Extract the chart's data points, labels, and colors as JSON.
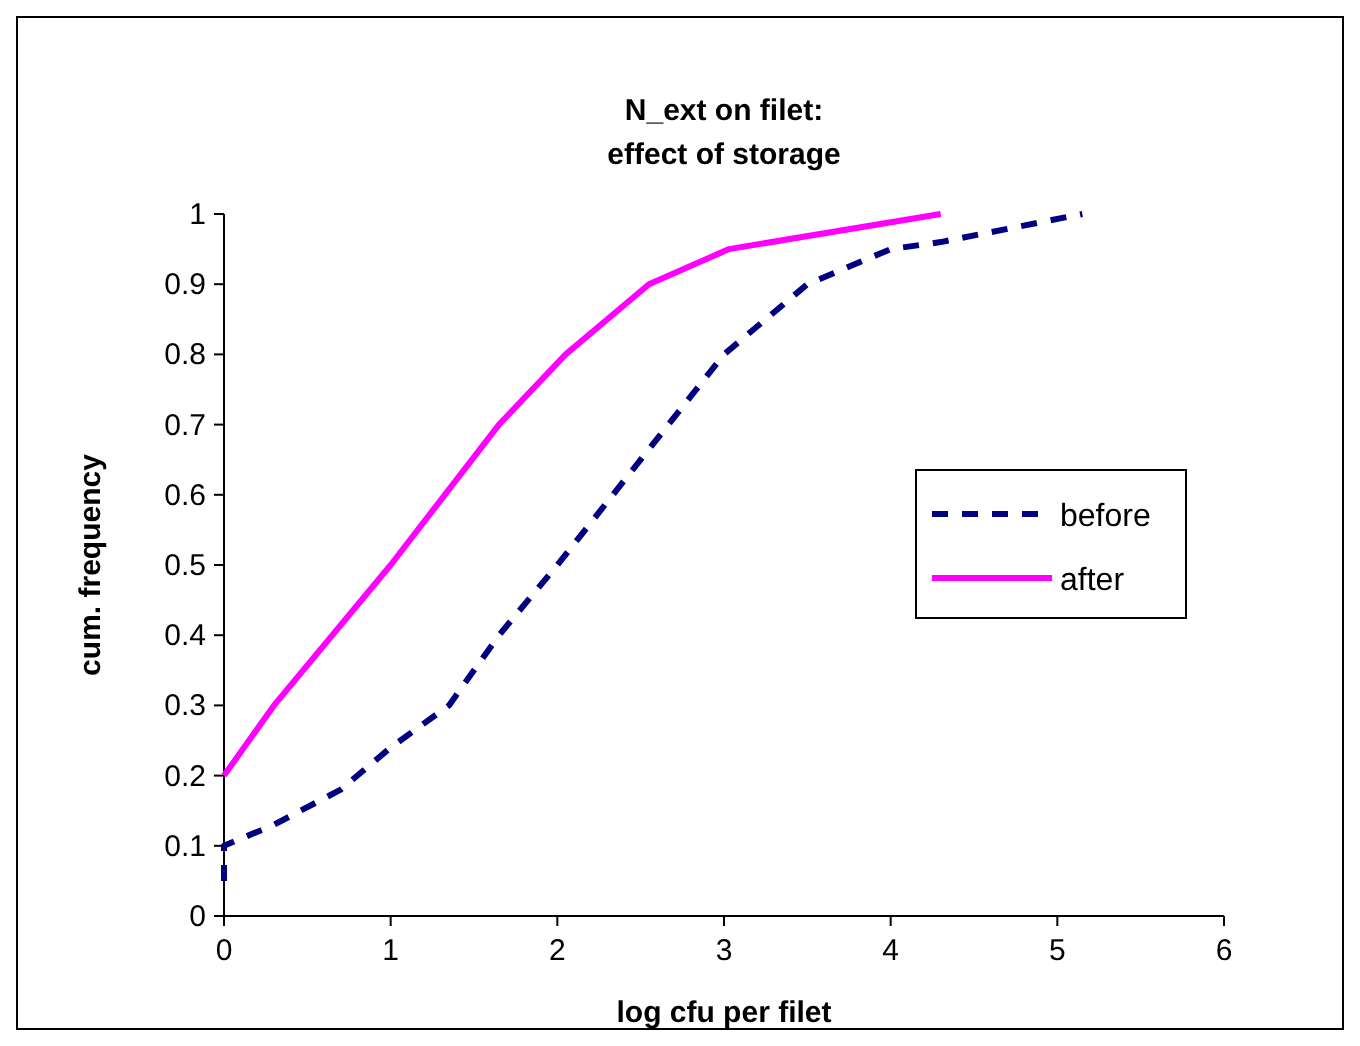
{
  "chart_data": {
    "type": "line",
    "title": "N_ext on filet:\neffect of storage",
    "xlabel": "log cfu per filet",
    "ylabel": "cum. frequency",
    "xlim": [
      0,
      6
    ],
    "xticks": [
      0,
      1,
      2,
      3,
      4,
      5,
      6
    ],
    "ylim": [
      0,
      1
    ],
    "yticks": [
      0,
      0.1,
      0.2,
      0.3,
      0.4,
      0.5,
      0.6,
      0.7,
      0.8,
      0.9,
      1
    ],
    "grid": false,
    "legend": "right",
    "marker": "none",
    "series": [
      {
        "name": "before",
        "color": "#000080",
        "line_style": "dashed",
        "x": [
          0,
          0,
          0.3,
          0.7,
          1,
          1.35,
          1.65,
          2,
          2.5,
          3,
          3.5,
          4,
          4.3,
          5.15
        ],
        "values": [
          0.05,
          0.1,
          0.13,
          0.18,
          0.24,
          0.3,
          0.4,
          0.5,
          0.65,
          0.8,
          0.9,
          0.95,
          0.96,
          1
        ]
      },
      {
        "name": "after",
        "color": "#ff00ff",
        "line_style": "solid",
        "x": [
          0,
          0.3,
          1,
          1.65,
          2.05,
          2.55,
          3.03,
          4.3
        ],
        "values": [
          0.2,
          0.3,
          0.5,
          0.7,
          0.8,
          0.9,
          0.95,
          1
        ]
      }
    ]
  }
}
